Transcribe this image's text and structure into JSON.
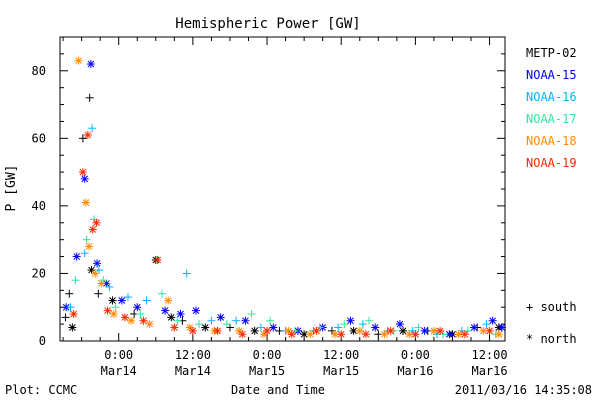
{
  "chart_data": {
    "type": "scatter",
    "title": "Hemispheric Power [GW]",
    "ylabel": "P [GW]",
    "xlabel": "Date and Time",
    "ylim": [
      0,
      90
    ],
    "yticks": [
      0,
      20,
      40,
      60,
      80
    ],
    "xlim_hours": [
      -9.5,
      62.5
    ],
    "xticks": [
      {
        "hour": 0,
        "time": "0:00",
        "date": "Mar14"
      },
      {
        "hour": 12,
        "time": "12:00",
        "date": "Mar14"
      },
      {
        "hour": 24,
        "time": "0:00",
        "date": "Mar15"
      },
      {
        "hour": 36,
        "time": "12:00",
        "date": "Mar15"
      },
      {
        "hour": 48,
        "time": "0:00",
        "date": "Mar16"
      },
      {
        "hour": 60,
        "time": "12:00",
        "date": "Mar16"
      }
    ],
    "grid": false,
    "legend_position": "right",
    "series": [
      {
        "name": "METP-02",
        "color": "#000000",
        "points": [
          {
            "x": -8.6,
            "y": 7,
            "h": "south"
          },
          {
            "x": -8.0,
            "y": 14,
            "h": "south"
          },
          {
            "x": -7.5,
            "y": 4,
            "h": "north"
          },
          {
            "x": -5.8,
            "y": 60,
            "h": "south"
          },
          {
            "x": -4.7,
            "y": 72,
            "h": "south"
          },
          {
            "x": -4.4,
            "y": 21,
            "h": "north"
          },
          {
            "x": -3.3,
            "y": 14,
            "h": "south"
          },
          {
            "x": -1.0,
            "y": 12,
            "h": "north"
          },
          {
            "x": 2.5,
            "y": 8,
            "h": "south"
          },
          {
            "x": 6.0,
            "y": 24,
            "h": "north"
          },
          {
            "x": 8.5,
            "y": 7,
            "h": "north"
          },
          {
            "x": 10.3,
            "y": 6,
            "h": "south"
          },
          {
            "x": 14.0,
            "y": 4,
            "h": "north"
          },
          {
            "x": 18.0,
            "y": 4,
            "h": "south"
          },
          {
            "x": 22.0,
            "y": 3,
            "h": "north"
          },
          {
            "x": 26.0,
            "y": 3,
            "h": "south"
          },
          {
            "x": 30.0,
            "y": 2,
            "h": "north"
          },
          {
            "x": 34.5,
            "y": 3,
            "h": "south"
          },
          {
            "x": 38.0,
            "y": 3,
            "h": "north"
          },
          {
            "x": 42.0,
            "y": 2,
            "h": "south"
          },
          {
            "x": 46.0,
            "y": 3,
            "h": "north"
          },
          {
            "x": 50.0,
            "y": 3,
            "h": "south"
          },
          {
            "x": 54.0,
            "y": 2,
            "h": "north"
          },
          {
            "x": 58.0,
            "y": 4,
            "h": "south"
          },
          {
            "x": 61.5,
            "y": 4,
            "h": "north"
          }
        ]
      },
      {
        "name": "NOAA-15",
        "color": "#0000ff",
        "points": [
          {
            "x": -8.5,
            "y": 10,
            "h": "north"
          },
          {
            "x": -6.8,
            "y": 25,
            "h": "north"
          },
          {
            "x": -5.5,
            "y": 48,
            "h": "north"
          },
          {
            "x": -4.5,
            "y": 82,
            "h": "north"
          },
          {
            "x": -3.5,
            "y": 23,
            "h": "north"
          },
          {
            "x": -2.0,
            "y": 17,
            "h": "north"
          },
          {
            "x": 0.5,
            "y": 12,
            "h": "north"
          },
          {
            "x": 3.0,
            "y": 10,
            "h": "north"
          },
          {
            "x": 7.5,
            "y": 9,
            "h": "north"
          },
          {
            "x": 10.0,
            "y": 8,
            "h": "north"
          },
          {
            "x": 12.5,
            "y": 9,
            "h": "north"
          },
          {
            "x": 16.5,
            "y": 7,
            "h": "north"
          },
          {
            "x": 20.5,
            "y": 6,
            "h": "north"
          },
          {
            "x": 25.0,
            "y": 4,
            "h": "north"
          },
          {
            "x": 29.0,
            "y": 3,
            "h": "north"
          },
          {
            "x": 33.0,
            "y": 4,
            "h": "north"
          },
          {
            "x": 37.5,
            "y": 6,
            "h": "north"
          },
          {
            "x": 41.5,
            "y": 4,
            "h": "north"
          },
          {
            "x": 45.5,
            "y": 5,
            "h": "north"
          },
          {
            "x": 49.5,
            "y": 3,
            "h": "north"
          },
          {
            "x": 53.5,
            "y": 2,
            "h": "north"
          },
          {
            "x": 57.5,
            "y": 4,
            "h": "north"
          },
          {
            "x": 60.5,
            "y": 6,
            "h": "north"
          },
          {
            "x": 62.0,
            "y": 4,
            "h": "north"
          }
        ]
      },
      {
        "name": "NOAA-16",
        "color": "#00b4ff",
        "points": [
          {
            "x": -7.8,
            "y": 10,
            "h": "south"
          },
          {
            "x": -5.5,
            "y": 26,
            "h": "south"
          },
          {
            "x": -4.3,
            "y": 63,
            "h": "south"
          },
          {
            "x": -3.2,
            "y": 21,
            "h": "south"
          },
          {
            "x": -1.5,
            "y": 16,
            "h": "south"
          },
          {
            "x": 1.5,
            "y": 13,
            "h": "south"
          },
          {
            "x": 4.5,
            "y": 12,
            "h": "south"
          },
          {
            "x": 11.0,
            "y": 20,
            "h": "south"
          },
          {
            "x": 15.0,
            "y": 6,
            "h": "south"
          },
          {
            "x": 19.0,
            "y": 6,
            "h": "south"
          },
          {
            "x": 23.0,
            "y": 4,
            "h": "south"
          },
          {
            "x": 27.0,
            "y": 3,
            "h": "south"
          },
          {
            "x": 31.5,
            "y": 3,
            "h": "south"
          },
          {
            "x": 35.5,
            "y": 4,
            "h": "south"
          },
          {
            "x": 39.5,
            "y": 5,
            "h": "south"
          },
          {
            "x": 43.5,
            "y": 3,
            "h": "south"
          },
          {
            "x": 47.5,
            "y": 3,
            "h": "south"
          },
          {
            "x": 51.5,
            "y": 2,
            "h": "south"
          },
          {
            "x": 55.5,
            "y": 3,
            "h": "south"
          },
          {
            "x": 59.5,
            "y": 5,
            "h": "south"
          }
        ]
      },
      {
        "name": "NOAA-17",
        "color": "#32e6a0",
        "points": [
          {
            "x": -7.0,
            "y": 18,
            "h": "south"
          },
          {
            "x": -5.2,
            "y": 30,
            "h": "south"
          },
          {
            "x": -4.0,
            "y": 36,
            "h": "south"
          },
          {
            "x": -2.5,
            "y": 18,
            "h": "south"
          },
          {
            "x": -0.5,
            "y": 10,
            "h": "south"
          },
          {
            "x": 3.5,
            "y": 8,
            "h": "south"
          },
          {
            "x": 7.0,
            "y": 14,
            "h": "south"
          },
          {
            "x": 9.5,
            "y": 6,
            "h": "south"
          },
          {
            "x": 13.0,
            "y": 5,
            "h": "south"
          },
          {
            "x": 17.5,
            "y": 5,
            "h": "south"
          },
          {
            "x": 21.5,
            "y": 8,
            "h": "south"
          },
          {
            "x": 24.5,
            "y": 6,
            "h": "south"
          },
          {
            "x": 28.5,
            "y": 3,
            "h": "south"
          },
          {
            "x": 32.5,
            "y": 4,
            "h": "south"
          },
          {
            "x": 36.5,
            "y": 5,
            "h": "south"
          },
          {
            "x": 40.5,
            "y": 6,
            "h": "south"
          },
          {
            "x": 44.5,
            "y": 3,
            "h": "south"
          },
          {
            "x": 48.5,
            "y": 4,
            "h": "south"
          },
          {
            "x": 52.5,
            "y": 2,
            "h": "south"
          },
          {
            "x": 56.5,
            "y": 3,
            "h": "south"
          },
          {
            "x": 61.0,
            "y": 2,
            "h": "south"
          }
        ]
      },
      {
        "name": "NOAA-18",
        "color": "#ff8c00",
        "points": [
          {
            "x": -6.5,
            "y": 83,
            "h": "north"
          },
          {
            "x": -5.3,
            "y": 41,
            "h": "north"
          },
          {
            "x": -4.8,
            "y": 28,
            "h": "north"
          },
          {
            "x": -3.8,
            "y": 20,
            "h": "north"
          },
          {
            "x": -2.8,
            "y": 17,
            "h": "north"
          },
          {
            "x": -0.8,
            "y": 8,
            "h": "north"
          },
          {
            "x": 2.0,
            "y": 6,
            "h": "north"
          },
          {
            "x": 5.0,
            "y": 5,
            "h": "north"
          },
          {
            "x": 8.0,
            "y": 12,
            "h": "north"
          },
          {
            "x": 11.5,
            "y": 4,
            "h": "north"
          },
          {
            "x": 15.5,
            "y": 3,
            "h": "north"
          },
          {
            "x": 19.5,
            "y": 3,
            "h": "north"
          },
          {
            "x": 23.5,
            "y": 2,
            "h": "north"
          },
          {
            "x": 27.5,
            "y": 3,
            "h": "north"
          },
          {
            "x": 31.0,
            "y": 2,
            "h": "north"
          },
          {
            "x": 35.0,
            "y": 2,
            "h": "north"
          },
          {
            "x": 39.0,
            "y": 3,
            "h": "north"
          },
          {
            "x": 43.0,
            "y": 2,
            "h": "north"
          },
          {
            "x": 47.0,
            "y": 2,
            "h": "north"
          },
          {
            "x": 51.0,
            "y": 3,
            "h": "north"
          },
          {
            "x": 55.0,
            "y": 2,
            "h": "north"
          },
          {
            "x": 59.0,
            "y": 3,
            "h": "north"
          },
          {
            "x": 61.5,
            "y": 2,
            "h": "north"
          }
        ]
      },
      {
        "name": "NOAA-19",
        "color": "#ff2800",
        "points": [
          {
            "x": -7.3,
            "y": 8,
            "h": "north"
          },
          {
            "x": -5.8,
            "y": 50,
            "h": "north"
          },
          {
            "x": -5.0,
            "y": 61,
            "h": "north"
          },
          {
            "x": -4.2,
            "y": 33,
            "h": "north"
          },
          {
            "x": -3.6,
            "y": 35,
            "h": "north"
          },
          {
            "x": -1.8,
            "y": 9,
            "h": "north"
          },
          {
            "x": 1.0,
            "y": 7,
            "h": "north"
          },
          {
            "x": 4.0,
            "y": 6,
            "h": "north"
          },
          {
            "x": 6.3,
            "y": 24,
            "h": "north"
          },
          {
            "x": 9.0,
            "y": 4,
            "h": "north"
          },
          {
            "x": 12.0,
            "y": 3,
            "h": "north"
          },
          {
            "x": 16.0,
            "y": 3,
            "h": "north"
          },
          {
            "x": 20.0,
            "y": 2,
            "h": "north"
          },
          {
            "x": 24.0,
            "y": 3,
            "h": "north"
          },
          {
            "x": 28.0,
            "y": 2,
            "h": "north"
          },
          {
            "x": 32.0,
            "y": 3,
            "h": "north"
          },
          {
            "x": 36.0,
            "y": 2,
            "h": "north"
          },
          {
            "x": 40.0,
            "y": 2,
            "h": "north"
          },
          {
            "x": 44.0,
            "y": 3,
            "h": "north"
          },
          {
            "x": 48.0,
            "y": 2,
            "h": "north"
          },
          {
            "x": 52.0,
            "y": 3,
            "h": "north"
          },
          {
            "x": 56.0,
            "y": 2,
            "h": "north"
          },
          {
            "x": 60.0,
            "y": 3,
            "h": "north"
          }
        ]
      }
    ],
    "marker_legend": [
      {
        "symbol": "+",
        "label": "south"
      },
      {
        "symbol": "*",
        "label": "north"
      }
    ]
  },
  "footer": {
    "left": "Plot: CCMC",
    "right": "2011/03/16 14:35:08"
  }
}
